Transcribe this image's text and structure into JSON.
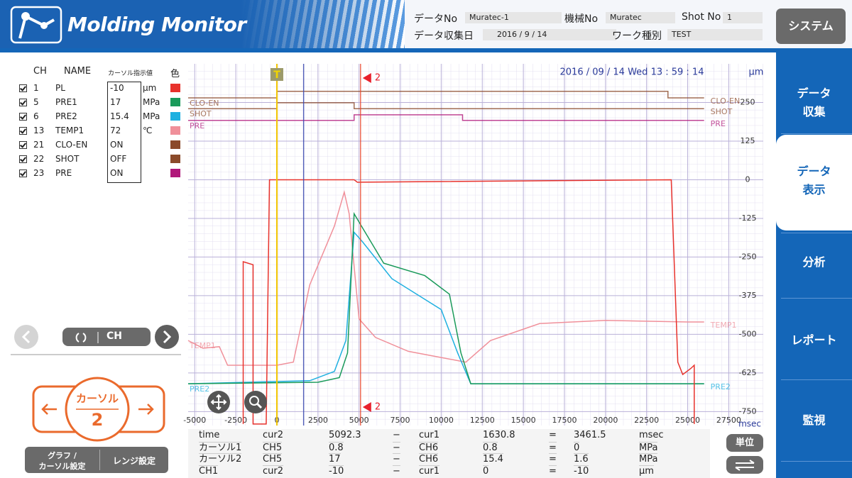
{
  "header": {
    "logo": "Molding Monitor",
    "system_button": "システム",
    "info": [
      {
        "label": "データNo",
        "value": "Muratec-1"
      },
      {
        "label": "機械No",
        "value": "Muratec"
      },
      {
        "label": "Shot No",
        "value": "1"
      },
      {
        "label": "データ収集日",
        "value": "2016  /  9  /  14"
      },
      {
        "label": "ワーク種別",
        "value": "TEST"
      }
    ]
  },
  "sidebar": {
    "tabs": [
      [
        "データ",
        "収集"
      ],
      [
        "データ",
        "表示"
      ],
      [
        "分析"
      ],
      [
        "レポート"
      ],
      [
        "監視"
      ]
    ]
  },
  "channels": {
    "headers": [
      "CH",
      "NAME",
      "カーソル指示値",
      "色"
    ],
    "rows": [
      {
        "ch": 1,
        "name": "PL",
        "value": -10,
        "unit": "μm",
        "color": "#e8322c",
        "x": [
          -2050,
          -2050,
          -1450,
          -1450,
          -650,
          -450,
          0,
          4700,
          4900,
          24000,
          24400,
          24700,
          25200,
          25400,
          25400
        ],
        "y": [
          -790,
          -265,
          -275,
          -790,
          -790,
          0,
          0,
          0,
          -8,
          0,
          -590,
          -630,
          -610,
          -600,
          -790
        ]
      },
      {
        "ch": 5,
        "name": "PRE1",
        "value": 17,
        "unit": "MPa",
        "color": "#1a9a5a",
        "x": [
          -5400,
          2500,
          3800,
          4300,
          4700,
          6500,
          9000,
          10500,
          11200,
          11800,
          26000
        ],
        "y": [
          -660,
          -655,
          -640,
          -560,
          -110,
          -270,
          -310,
          -370,
          -560,
          -660,
          -660
        ]
      },
      {
        "ch": 6,
        "name": "PRE2",
        "value": 15.4,
        "unit": "MPa",
        "color": "#1eb0e0",
        "x": [
          -5400,
          2000,
          3500,
          4200,
          4700,
          5200,
          7000,
          10000,
          11000,
          11800,
          26000
        ],
        "y": [
          -660,
          -650,
          -620,
          -520,
          -170,
          -200,
          -320,
          -420,
          -560,
          -660,
          -660
        ]
      },
      {
        "ch": 13,
        "name": "TEMP1",
        "value": 72,
        "unit": "℃",
        "color": "#f0909a",
        "x": [
          -5400,
          -4500,
          -3500,
          -3000,
          0,
          1000,
          2000,
          3500,
          4100,
          4400,
          5000,
          6000,
          8000,
          10000,
          11500,
          13000,
          16000,
          20000,
          25000,
          26000
        ],
        "y": [
          -520,
          -545,
          -540,
          -600,
          -600,
          -590,
          -340,
          -150,
          -40,
          -110,
          -450,
          -510,
          -555,
          -575,
          -590,
          -520,
          -465,
          -455,
          -460,
          -460
        ]
      },
      {
        "ch": 21,
        "name": "CLO-EN",
        "value": "ON",
        "unit": "",
        "color": "#8b4a2a",
        "x": [
          -5400,
          0,
          0,
          23800,
          23800,
          26000
        ],
        "y": [
          265,
          265,
          286,
          286,
          265,
          265
        ]
      },
      {
        "ch": 22,
        "name": "SHOT",
        "value": "OFF",
        "unit": "",
        "color": "#8b4a2a",
        "x": [
          -5400,
          0,
          0,
          4700,
          4700,
          26000
        ],
        "y": [
          230,
          230,
          249,
          249,
          230,
          230
        ]
      },
      {
        "ch": 23,
        "name": "PRE",
        "value": "ON",
        "unit": "",
        "color": "#b0187a",
        "x": [
          -5400,
          4700,
          4700,
          11300,
          11300,
          26000
        ],
        "y": [
          192,
          192,
          210,
          210,
          192,
          192
        ]
      }
    ]
  },
  "nav": {
    "ch_button": "CH"
  },
  "cursor_control": {
    "label": "カーソル",
    "number": 2
  },
  "buttons": {
    "graph_cursor": [
      "グラフ /",
      "カーソル設定"
    ],
    "range": "レンジ設定",
    "unit": "単位"
  },
  "plot": {
    "timestamp": "2016 / 09 / 14  Wed 13 : 59 : 14",
    "y_unit": "μm",
    "x_unit": "msec",
    "trigger_label": "T",
    "trigger_x": 0,
    "xlim": [
      -5400,
      29600
    ],
    "ylim": [
      -795,
      375
    ],
    "xticks": [
      -5000,
      -2500,
      0,
      2500,
      5000,
      7500,
      10000,
      12500,
      15000,
      17500,
      20000,
      22500,
      25000,
      27500
    ],
    "yticks": [
      250,
      125,
      0,
      -125,
      -250,
      -375,
      -500,
      -625,
      -750
    ]
  },
  "readout": {
    "rows": [
      [
        "time",
        "cur2",
        5092.3,
        "−",
        "cur1",
        1630.8,
        "=",
        3461.5,
        "msec"
      ],
      [
        "カーソル1",
        "CH5",
        0.8,
        "−",
        "CH6",
        0.8,
        "=",
        0,
        "MPa"
      ],
      [
        "カーソル2",
        "CH5",
        17,
        "−",
        "CH6",
        15.4,
        "=",
        1.6,
        "MPa"
      ],
      [
        "CH1",
        "cur2",
        -10,
        "−",
        "cur1",
        0,
        "=",
        -10,
        "μm"
      ]
    ]
  }
}
